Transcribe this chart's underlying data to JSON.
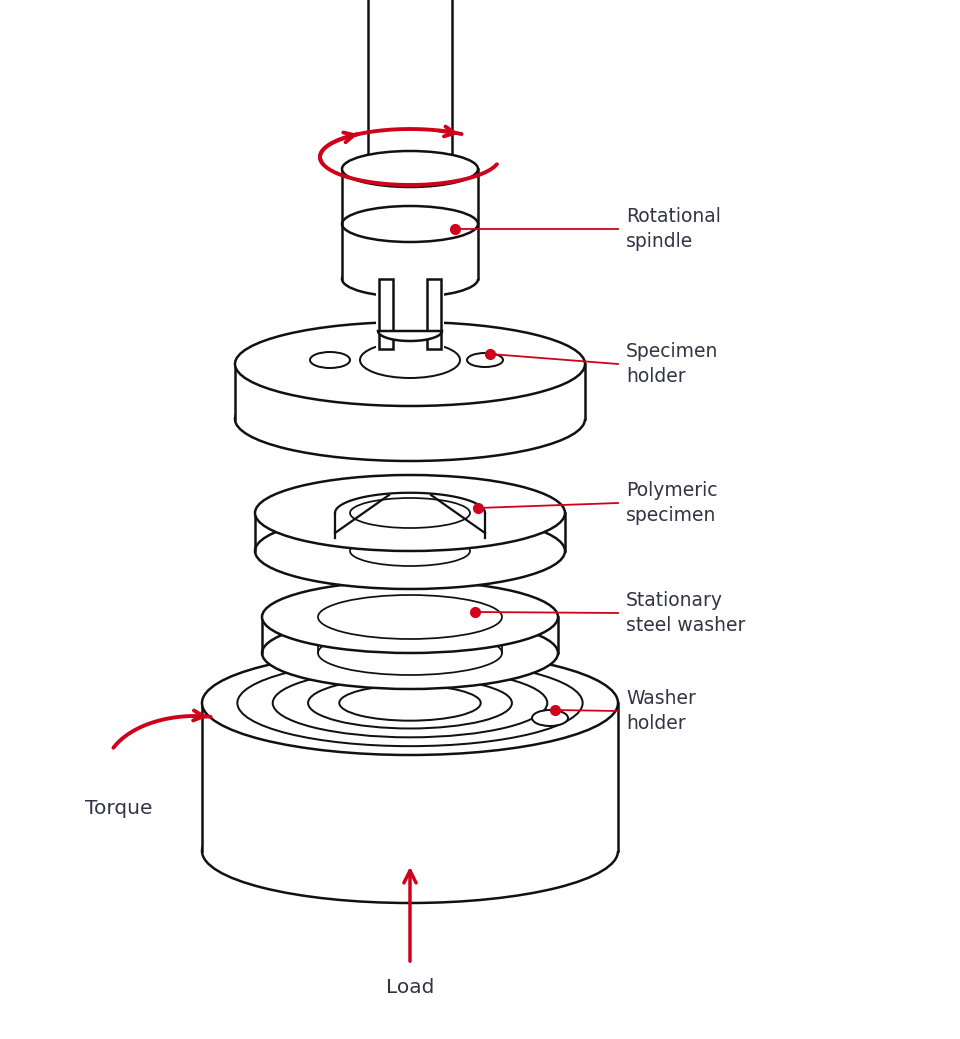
{
  "bg_color": "#ffffff",
  "line_color": "#111111",
  "red_color": "#d0021b",
  "label_color": "#333344",
  "labels": {
    "rotational_spindle": "Rotational\nspindle",
    "specimen_holder": "Specimen\nholder",
    "polymeric_specimen": "Polymeric\nspecimen",
    "stationary_steel_washer": "Stationary\nsteel washer",
    "washer_holder": "Washer\nholder",
    "torque": "Torque",
    "load": "Load"
  },
  "font_size_labels": 13.5
}
